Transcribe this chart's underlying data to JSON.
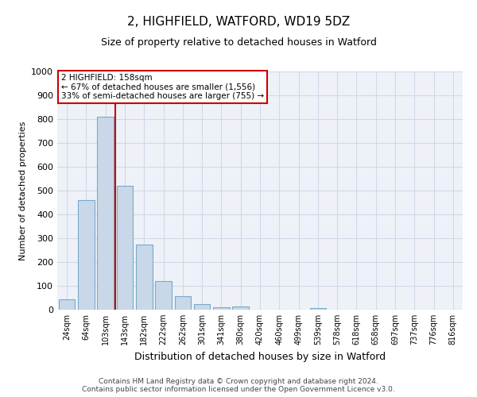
{
  "title": "2, HIGHFIELD, WATFORD, WD19 5DZ",
  "subtitle": "Size of property relative to detached houses in Watford",
  "xlabel": "Distribution of detached houses by size in Watford",
  "ylabel": "Number of detached properties",
  "footer_line1": "Contains HM Land Registry data © Crown copyright and database right 2024.",
  "footer_line2": "Contains public sector information licensed under the Open Government Licence v3.0.",
  "bar_labels": [
    "24sqm",
    "64sqm",
    "103sqm",
    "143sqm",
    "182sqm",
    "222sqm",
    "262sqm",
    "301sqm",
    "341sqm",
    "380sqm",
    "420sqm",
    "460sqm",
    "499sqm",
    "539sqm",
    "578sqm",
    "618sqm",
    "658sqm",
    "697sqm",
    "737sqm",
    "776sqm",
    "816sqm"
  ],
  "bar_values": [
    43,
    460,
    810,
    520,
    275,
    120,
    57,
    23,
    10,
    12,
    0,
    0,
    0,
    8,
    0,
    0,
    0,
    0,
    0,
    0,
    0
  ],
  "bar_color": "#c8d8e8",
  "bar_edgecolor": "#7aaac8",
  "grid_color": "#d0d8e8",
  "background_color": "#eef2f8",
  "annotation_text": "2 HIGHFIELD: 158sqm\n← 67% of detached houses are smaller (1,556)\n33% of semi-detached houses are larger (755) →",
  "annotation_box_color": "#ffffff",
  "annotation_box_edgecolor": "#cc0000",
  "vline_x": 2.5,
  "vline_color": "#cc0000",
  "ylim": [
    0,
    1000
  ],
  "yticks": [
    0,
    100,
    200,
    300,
    400,
    500,
    600,
    700,
    800,
    900,
    1000
  ]
}
